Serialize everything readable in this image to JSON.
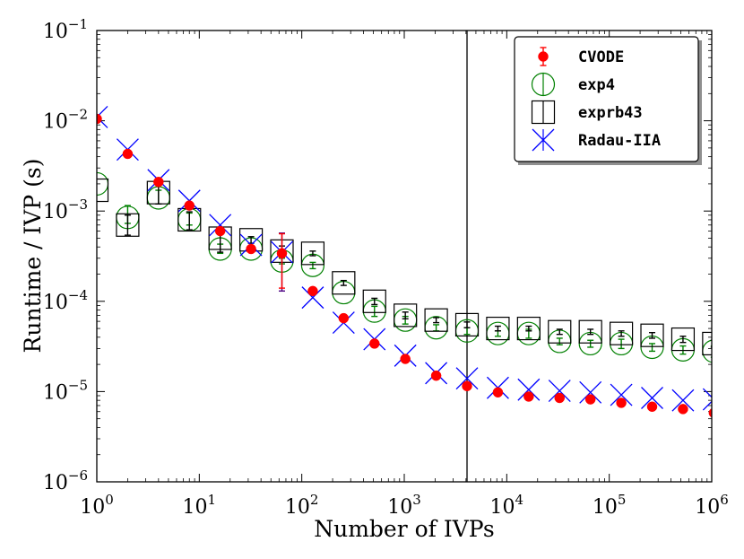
{
  "chart_data": {
    "type": "scatter",
    "xscale": "log",
    "yscale": "log",
    "xlabel": "Number of IVPs",
    "ylabel": "Runtime / IVP (s)",
    "xlim": [
      1,
      1000000
    ],
    "ylim": [
      1e-06,
      0.1
    ],
    "x_ticks": [
      {
        "value": 1,
        "mant": "10",
        "exp": "0"
      },
      {
        "value": 10,
        "mant": "10",
        "exp": "1"
      },
      {
        "value": 100,
        "mant": "10",
        "exp": "2"
      },
      {
        "value": 1000,
        "mant": "10",
        "exp": "3"
      },
      {
        "value": 10000,
        "mant": "10",
        "exp": "4"
      },
      {
        "value": 100000,
        "mant": "10",
        "exp": "5"
      },
      {
        "value": 1000000,
        "mant": "10",
        "exp": "6"
      }
    ],
    "y_ticks": [
      {
        "value": 0.1,
        "mant": "10",
        "exp": "−1"
      },
      {
        "value": 0.01,
        "mant": "10",
        "exp": "−2"
      },
      {
        "value": 0.001,
        "mant": "10",
        "exp": "−3"
      },
      {
        "value": 0.0001,
        "mant": "10",
        "exp": "−4"
      },
      {
        "value": 1e-05,
        "mant": "10",
        "exp": "−5"
      },
      {
        "value": 1e-06,
        "mant": "10",
        "exp": "−6"
      }
    ],
    "vline_x": 4096,
    "legend_position": "top-right",
    "x": [
      1,
      2,
      4,
      8,
      16,
      32,
      64,
      128,
      256,
      512,
      1024,
      2048,
      4096,
      8192,
      16384,
      32768,
      65536,
      131072,
      262144,
      524288,
      1048576
    ],
    "series": [
      {
        "name": "CVODE",
        "marker": "dot",
        "color": "#ff0000",
        "values": [
          0.0105,
          0.0043,
          0.0021,
          0.00115,
          0.0006,
          0.00038,
          0.00034,
          0.00013,
          6.5e-05,
          3.4e-05,
          2.3e-05,
          1.5e-05,
          1.15e-05,
          9.8e-06,
          8.8e-06,
          8.5e-06,
          8.2e-06,
          7.5e-06,
          6.8e-06,
          6.4e-06,
          5.8e-06
        ],
        "err_lo": [
          0,
          0,
          0,
          0,
          0,
          0,
          0.0002,
          0,
          0,
          0,
          0,
          0,
          0,
          0,
          0,
          0,
          0,
          0,
          0,
          0,
          0
        ],
        "err_hi": [
          0,
          0,
          0,
          0,
          0,
          0,
          0.00022,
          0,
          0,
          0,
          0,
          0,
          0,
          0,
          0,
          0,
          0,
          0,
          0,
          0,
          0
        ]
      },
      {
        "name": "exp4",
        "marker": "circle",
        "color": "#008000",
        "values": [
          0.002,
          0.00085,
          0.0014,
          0.0008,
          0.00038,
          0.00038,
          0.00028,
          0.00025,
          0.000125,
          7.8e-05,
          6.2e-05,
          5.1e-05,
          4.7e-05,
          4.4e-05,
          4.4e-05,
          3.6e-05,
          3.4e-05,
          3.4e-05,
          3.1e-05,
          2.9e-05,
          2.8e-05
        ],
        "err_lo": [
          0,
          0.00012,
          0.0002,
          0.0001,
          4e-05,
          3e-05,
          2e-05,
          2e-05,
          0,
          1e-05,
          6e-06,
          4e-06,
          4e-06,
          3e-06,
          5e-06,
          3e-06,
          3e-06,
          4e-06,
          3e-06,
          3e-06,
          4e-06
        ],
        "err_hi": [
          0,
          0.0003,
          0.0003,
          0.00015,
          5e-05,
          3e-05,
          2e-05,
          2e-05,
          0,
          1e-05,
          6e-06,
          4e-06,
          4e-06,
          3e-06,
          5e-06,
          3e-06,
          3e-06,
          4e-06,
          3e-06,
          3e-06,
          4e-06
        ]
      },
      {
        "name": "exprb43",
        "marker": "square",
        "color": "#000000",
        "values": [
          0.0017,
          0.0007,
          0.0016,
          0.0008,
          0.0005,
          0.00048,
          0.00036,
          0.00034,
          0.00016,
          0.0001,
          7e-05,
          6.2e-05,
          5.5e-05,
          5e-05,
          5e-05,
          4.6e-05,
          4.6e-05,
          4.4e-05,
          4.2e-05,
          3.8e-05,
          3.4e-05
        ],
        "err_lo": [
          0,
          0.00016,
          0.0004,
          0.00018,
          0.00015,
          4e-05,
          5e-05,
          2e-05,
          1e-05,
          8e-06,
          6e-06,
          4e-06,
          4e-06,
          3e-06,
          3e-06,
          3e-06,
          3e-06,
          3e-06,
          3e-06,
          3e-06,
          3e-06
        ],
        "err_hi": [
          0,
          0.0002,
          0.0004,
          0.00018,
          0.00015,
          4e-05,
          5e-05,
          2e-05,
          1e-05,
          8e-06,
          6e-06,
          4e-06,
          4e-06,
          3e-06,
          3e-06,
          3e-06,
          3e-06,
          3e-06,
          3e-06,
          3e-06,
          3e-06
        ]
      },
      {
        "name": "Radau-IIA",
        "marker": "x",
        "color": "#0000ff",
        "values": [
          0.011,
          0.0048,
          0.0022,
          0.0013,
          0.0007,
          0.00042,
          0.00035,
          0.00011,
          5.8e-05,
          3.8e-05,
          2.5e-05,
          1.6e-05,
          1.4e-05,
          1.1e-05,
          1.05e-05,
          1.02e-05,
          9.8e-06,
          9.2e-06,
          8.5e-06,
          8e-06,
          8.2e-06
        ],
        "err_lo": [
          0,
          0,
          0,
          0,
          0,
          0,
          0.00022,
          0,
          0,
          0,
          0,
          0,
          0,
          0,
          0,
          0,
          0,
          0,
          0,
          0,
          0
        ],
        "err_hi": [
          0,
          0,
          0,
          0,
          0,
          0,
          0.00022,
          0,
          0,
          0,
          0,
          0,
          0,
          0,
          0,
          0,
          0,
          0,
          0,
          0,
          0
        ]
      }
    ]
  }
}
